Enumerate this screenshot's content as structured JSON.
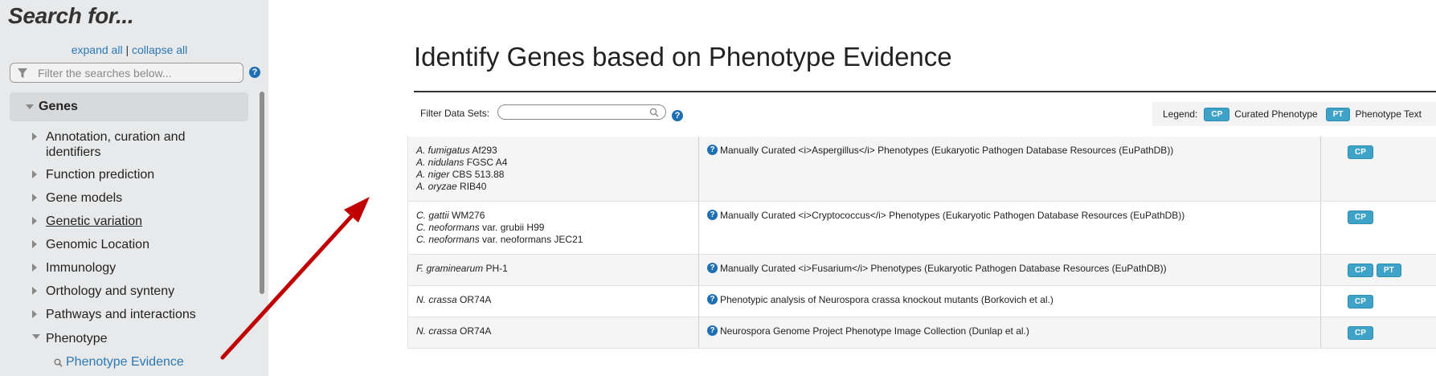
{
  "sidebar": {
    "title": "Search for...",
    "expand_all": "expand all",
    "separator": "|",
    "collapse_all": "collapse all",
    "filter_placeholder": "Filter the searches below...",
    "help_symbol": "?",
    "root": "Genes",
    "items": [
      {
        "label": "Annotation, curation and identifiers"
      },
      {
        "label": "Function prediction"
      },
      {
        "label": "Gene models"
      },
      {
        "label": "Genetic variation"
      },
      {
        "label": "Genomic Location"
      },
      {
        "label": "Immunology"
      },
      {
        "label": "Orthology and synteny"
      },
      {
        "label": "Pathways and interactions"
      },
      {
        "label": "Phenotype"
      }
    ],
    "leaf": "Phenotype Evidence"
  },
  "main": {
    "title": "Identify Genes based on Phenotype Evidence",
    "filter_label": "Filter Data Sets:",
    "filter_value": "",
    "help_symbol": "?",
    "legend": {
      "label": "Legend:",
      "cp_badge": "CP",
      "cp_text": "Curated Phenotype",
      "pt_badge": "PT",
      "pt_text": "Phenotype Text"
    },
    "rows": [
      {
        "organisms": [
          {
            "genus": "A. fumigatus",
            "strain": "Af293"
          },
          {
            "genus": "A. nidulans",
            "strain": "FGSC A4"
          },
          {
            "genus": "A. niger",
            "strain": "CBS 513.88"
          },
          {
            "genus": "A. oryzae",
            "strain": "RIB40"
          }
        ],
        "dataset": "Manually Curated <i>Aspergillus</i> Phenotypes (Eukaryotic Pathogen Database Resources (EuPathDB))",
        "badges": [
          "CP"
        ]
      },
      {
        "organisms": [
          {
            "genus": "C. gattii",
            "strain": "WM276"
          },
          {
            "genus": "C. neoformans",
            "strain": "var. grubii H99"
          },
          {
            "genus": "C. neoformans",
            "strain": "var. neoformans JEC21"
          }
        ],
        "dataset": "Manually Curated <i>Cryptococcus</i> Phenotypes (Eukaryotic Pathogen Database Resources (EuPathDB))",
        "badges": [
          "CP"
        ]
      },
      {
        "organisms": [
          {
            "genus": "F. graminearum",
            "strain": "PH-1"
          }
        ],
        "dataset": "Manually Curated <i>Fusarium</i> Phenotypes (Eukaryotic Pathogen Database Resources (EuPathDB))",
        "badges": [
          "CP",
          "PT"
        ]
      },
      {
        "organisms": [
          {
            "genus": "N. crassa",
            "strain": "OR74A"
          }
        ],
        "dataset": "Phenotypic analysis of Neurospora crassa knockout mutants (Borkovich et al.)",
        "badges": [
          "CP"
        ]
      },
      {
        "organisms": [
          {
            "genus": "N. crassa",
            "strain": "OR74A"
          }
        ],
        "dataset": "Neurospora Genome Project Phenotype Image Collection (Dunlap et al.)",
        "badges": [
          "CP"
        ]
      }
    ]
  },
  "colors": {
    "link": "#2a78b5",
    "badge": "#3fa3c9",
    "arrow": "#c00000",
    "sidebar_bg": "#e8e9ea"
  },
  "icons": [
    "filter-icon",
    "help-icon",
    "caret-right-icon",
    "caret-down-icon",
    "search-icon",
    "magnifier-icon",
    "arrow-annotation"
  ]
}
